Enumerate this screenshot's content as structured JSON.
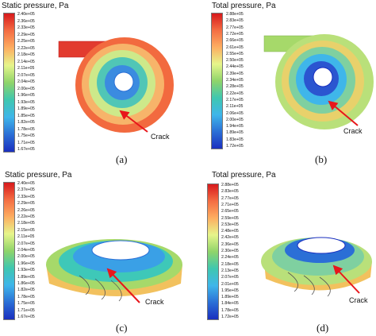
{
  "panels": [
    {
      "id": "a",
      "title": "Static pressure, Pa",
      "label": "(a)",
      "crack": "Crack",
      "colorbar": [
        "2.40e+05",
        "2.36e+05",
        "2.33e+05",
        "2.29e+05",
        "2.25e+05",
        "2.22e+05",
        "2.18e+05",
        "2.14e+05",
        "2.11e+05",
        "2.07e+05",
        "2.04e+05",
        "2.00e+05",
        "1.96e+05",
        "1.93e+05",
        "1.89e+05",
        "1.85e+05",
        "1.82e+05",
        "1.78e+05",
        "1.75e+05",
        "1.71e+05",
        "1.67e+05"
      ]
    },
    {
      "id": "b",
      "title": "Total pressure, Pa",
      "label": "(b)",
      "crack": "Crack",
      "colorbar": [
        "2.88e+05",
        "2.83e+05",
        "2.77e+05",
        "2.72e+05",
        "2.66e+05",
        "2.61e+05",
        "2.55e+05",
        "2.50e+05",
        "2.44e+05",
        "2.39e+05",
        "2.34e+05",
        "2.28e+05",
        "2.22e+05",
        "2.17e+05",
        "2.11e+05",
        "2.06e+05",
        "2.00e+05",
        "1.94e+05",
        "1.89e+05",
        "1.83e+05",
        "1.72e+05"
      ]
    },
    {
      "id": "c",
      "title": "Static pressure, Pa",
      "label": "(c)",
      "crack": "Crack",
      "colorbar": [
        "2.40e+05",
        "2.37e+05",
        "2.33e+05",
        "2.29e+05",
        "2.26e+05",
        "2.22e+05",
        "2.18e+05",
        "2.15e+05",
        "2.11e+05",
        "2.07e+05",
        "2.04e+05",
        "2.00e+05",
        "1.96e+05",
        "1.93e+05",
        "1.89e+05",
        "1.86e+05",
        "1.82e+05",
        "1.78e+05",
        "1.75e+05",
        "1.71e+05",
        "1.67e+05"
      ]
    },
    {
      "id": "d",
      "title": "Total pressure, Pa",
      "label": "(d)",
      "crack": "Crack",
      "colorbar": [
        "2.88e+05",
        "2.83e+05",
        "2.77e+05",
        "2.71e+05",
        "2.65e+05",
        "2.59e+05",
        "2.53e+05",
        "2.48e+05",
        "2.42e+05",
        "2.36e+05",
        "2.30e+05",
        "2.24e+05",
        "2.18e+05",
        "2.13e+05",
        "2.07e+05",
        "2.01e+05",
        "1.95e+05",
        "1.89e+05",
        "1.84e+05",
        "1.78e+05",
        "1.72e+05"
      ]
    }
  ],
  "colormap": [
    "#d7191c",
    "#ef3b2c",
    "#f46d43",
    "#fdae61",
    "#fee08b",
    "#d9ef8b",
    "#a6d96a",
    "#66c2a5",
    "#3ec8e0",
    "#4aa3e8",
    "#2b6fd6",
    "#1a2fbf"
  ],
  "arrow_color": "#e8161b"
}
